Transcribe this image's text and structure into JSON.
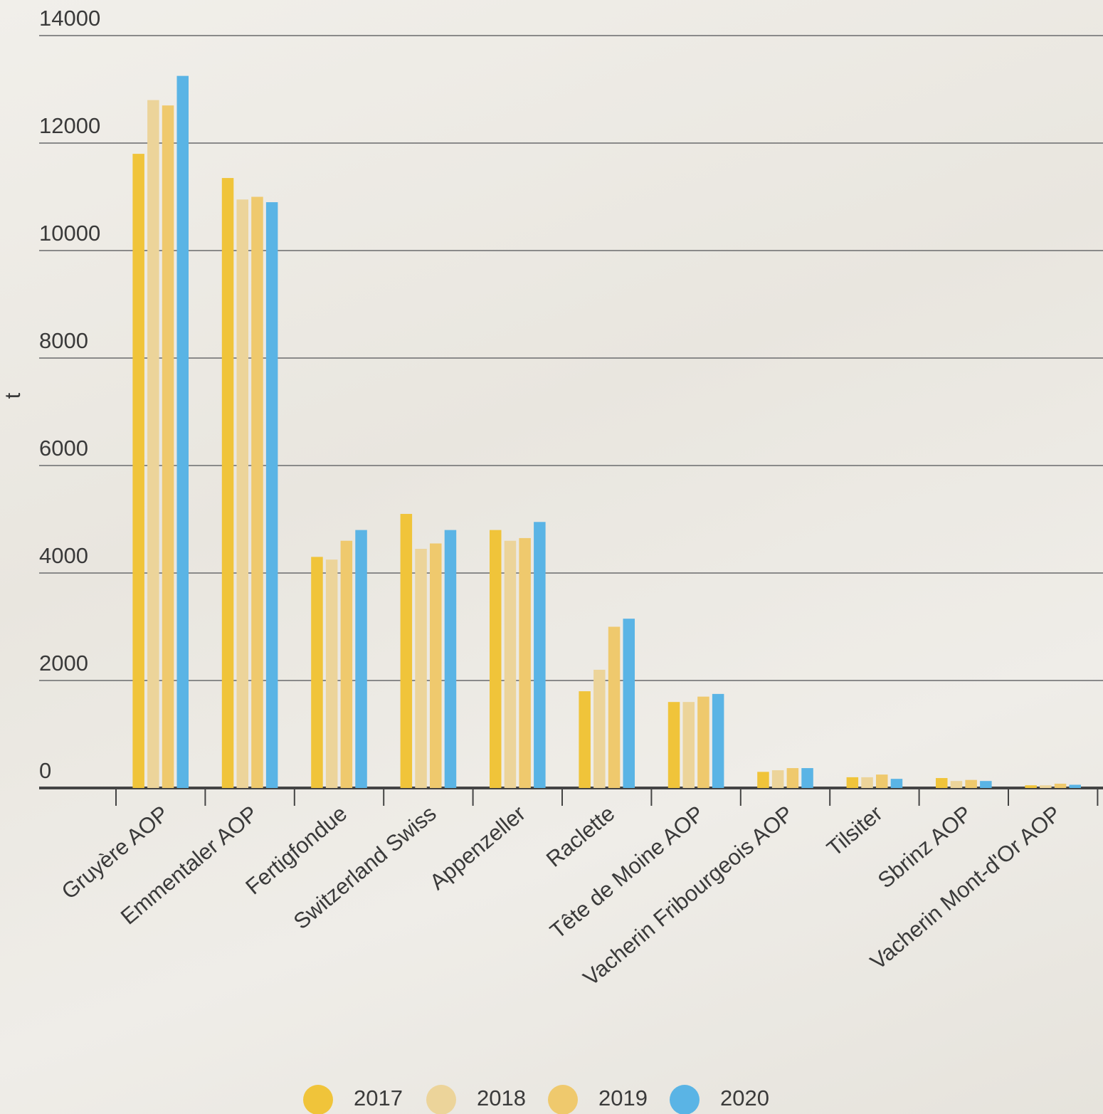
{
  "chart_data": {
    "type": "bar",
    "y_label": "t",
    "categories": [
      "Gruyère AOP",
      "Emmentaler AOP",
      "Fertigfondue",
      "Switzerland Swiss",
      "Appenzeller",
      "Raclette",
      "Tête de Moine AOP",
      "Vacherin Fribourgeois AOP",
      "Tilsiter",
      "Sbrinz AOP",
      "Vacherin Mont-d'Or AOP"
    ],
    "series": [
      {
        "name": "2017",
        "color": "#f0c43a",
        "values": [
          11800,
          11350,
          4300,
          5100,
          4800,
          1800,
          1600,
          300,
          200,
          185,
          50
        ]
      },
      {
        "name": "2018",
        "color": "#ecd49a",
        "values": [
          12800,
          10950,
          4250,
          4450,
          4600,
          2200,
          1600,
          330,
          200,
          130,
          50
        ]
      },
      {
        "name": "2019",
        "color": "#efc96d",
        "values": [
          12700,
          11000,
          4600,
          4550,
          4650,
          3000,
          1700,
          370,
          250,
          150,
          80
        ]
      },
      {
        "name": "2020",
        "color": "#5ab4e5",
        "values": [
          13250,
          10900,
          4800,
          4800,
          4950,
          3150,
          1750,
          370,
          170,
          130,
          60
        ]
      }
    ],
    "ylim": [
      0,
      14000
    ],
    "yticks": [
      0,
      2000,
      4000,
      6000,
      8000,
      10000,
      12000,
      14000
    ],
    "grid": true
  }
}
